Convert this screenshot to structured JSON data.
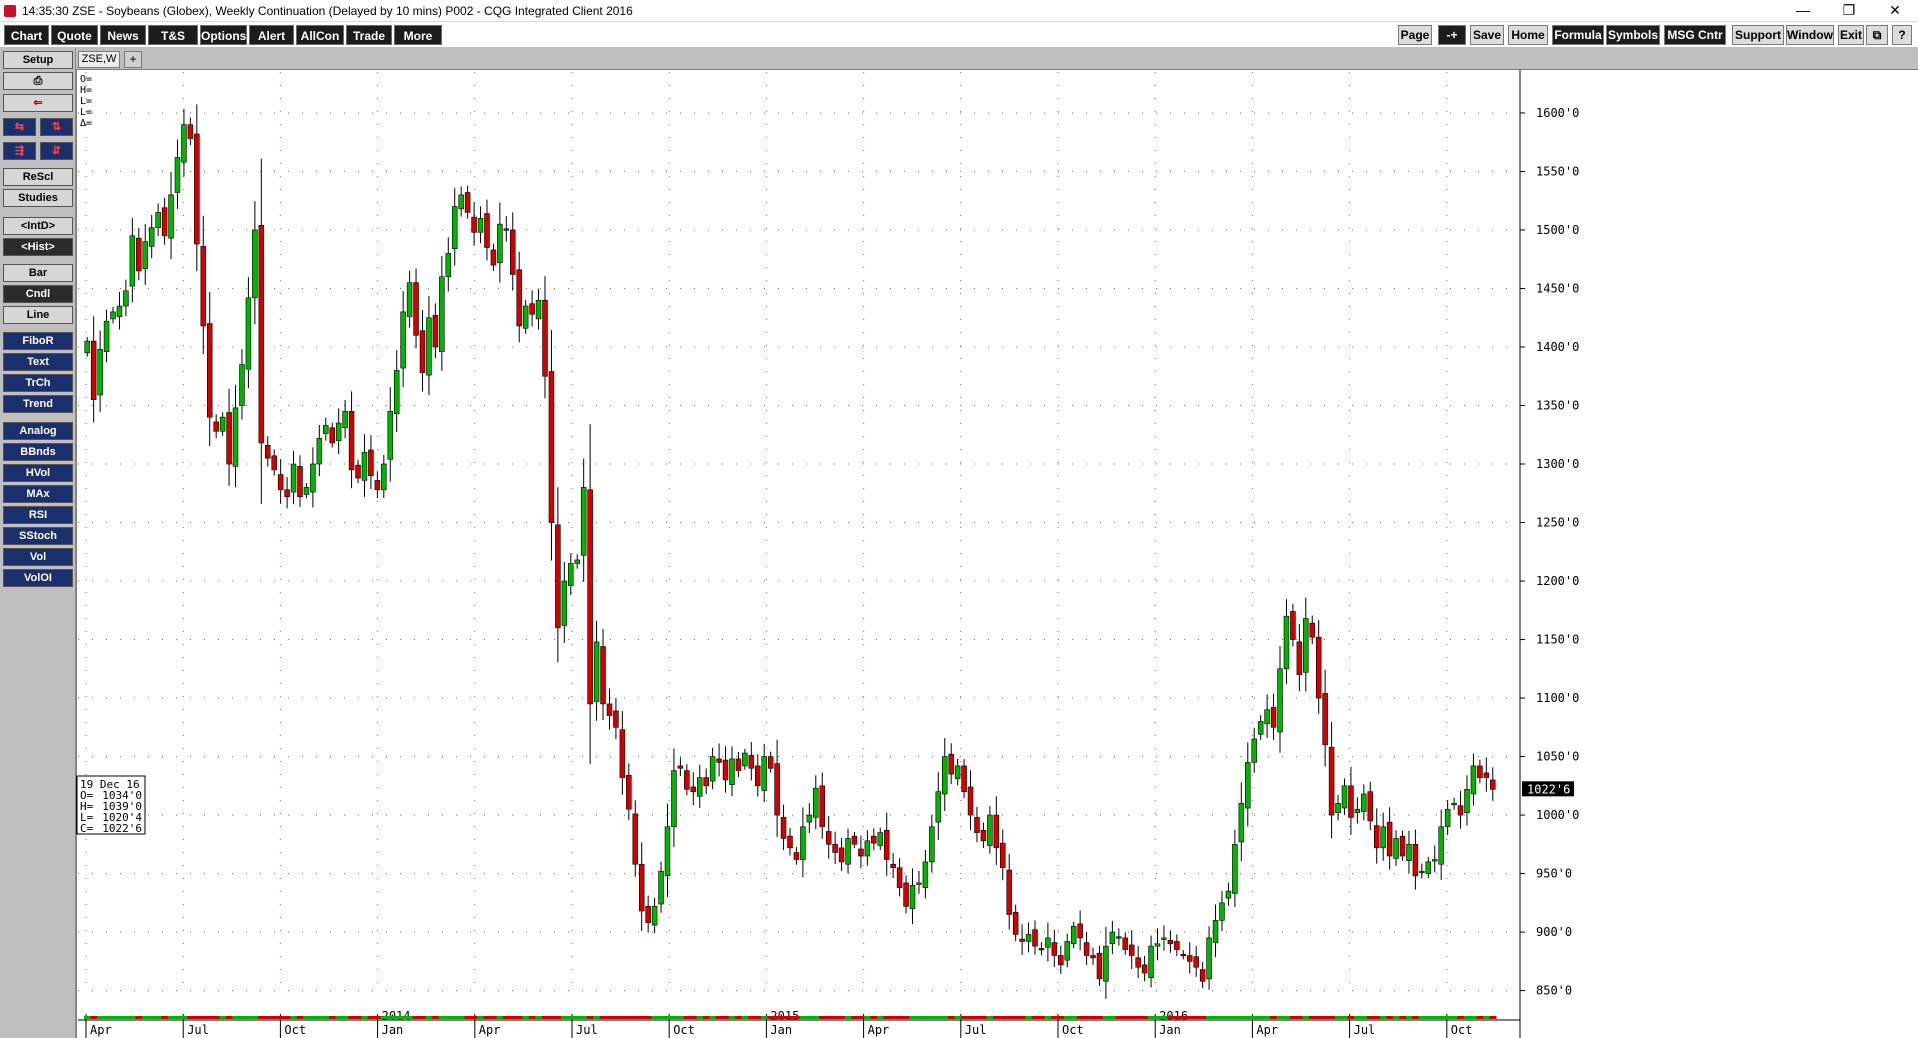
{
  "window": {
    "time": "14:35:30",
    "title": "ZSE - Soybeans (Globex), Weekly Continuation (Delayed by 10 mins)  P002 - CQG Integrated Client 2016",
    "minimize": "—",
    "restore": "❐",
    "close": "✕"
  },
  "menubar": {
    "left": [
      "Chart",
      "Quote",
      "News",
      "T&S",
      "Options",
      "Alert",
      "AllCon",
      "Trade",
      "More"
    ],
    "right": [
      "Page",
      "-+",
      "Save",
      "Home",
      "Formula",
      "Symbols",
      "MSG Cntr",
      "Support",
      "Window",
      "Exit",
      "",
      "?"
    ]
  },
  "sidebar": {
    "top": [
      "Setup"
    ],
    "nav_icons": [
      "print-icon",
      "exit-icon",
      "scroll-left-icon",
      "scroll-right-icon",
      "compress-icon",
      "expand-icon"
    ],
    "controls": [
      "ReScl",
      "Studies",
      "<IntD>",
      "<Hist>",
      "Bar",
      "Cndl",
      "Line"
    ],
    "tools": [
      "FiboR",
      "Text",
      "TrCh",
      "Trend"
    ],
    "studies": [
      "Analog",
      "BBnds",
      "HVol",
      "MAx",
      "RSI",
      "SStoch",
      "Vol",
      "VolOI"
    ]
  },
  "tab": {
    "label": "ZSE,W",
    "add": "+"
  },
  "cursor_box": {
    "lines": [
      "O=",
      "H=",
      "L=",
      "L=",
      "Δ="
    ]
  },
  "info_box": {
    "date": "19 Dec 16",
    "rows": [
      {
        "label": "O=",
        "value": "1034'0"
      },
      {
        "label": "H=",
        "value": "1039'0"
      },
      {
        "label": "L=",
        "value": "1020'4"
      },
      {
        "label": "C=",
        "value": "1022'6"
      }
    ]
  },
  "last_price_label": "1022'6",
  "colors": {
    "up": "#00b400",
    "down": "#d40000",
    "grid": "#6a6a6a",
    "axis": "#000000",
    "last_bg": "#000000"
  },
  "chart_data": {
    "type": "candlestick",
    "symbol": "ZSE",
    "period": "weekly",
    "ylim": [
      830,
      1635
    ],
    "y_ticks": [
      850,
      900,
      950,
      1000,
      1050,
      1100,
      1150,
      1200,
      1250,
      1300,
      1350,
      1400,
      1450,
      1500,
      1550,
      1600
    ],
    "y_tick_labels": [
      "850'0",
      "900'0",
      "950'0",
      "1000'0",
      "1050'0",
      "1100'0",
      "1150'0",
      "1200'0",
      "1250'0",
      "1300'0",
      "1350'0",
      "1400'0",
      "1450'0",
      "1500'0",
      "1550'0",
      "1600'0"
    ],
    "x_month_labels": [
      "Apr",
      "Jul",
      "Oct",
      "Jan",
      "Apr",
      "Jul",
      "Oct",
      "Jan",
      "Apr",
      "Jul",
      "Oct",
      "Jan",
      "Apr",
      "Jul",
      "Oct"
    ],
    "x_year_labels": [
      {
        "label": "2014",
        "month_index": 3
      },
      {
        "label": "2015",
        "month_index": 7
      },
      {
        "label": "2016",
        "month_index": 11
      }
    ],
    "closes": [
      1405,
      1355,
      1398,
      1422,
      1430,
      1435,
      1448,
      1495,
      1465,
      1490,
      1502,
      1515,
      1495,
      1530,
      1562,
      1590,
      1578,
      1488,
      1418,
      1340,
      1328,
      1340,
      1300,
      1348,
      1385,
      1442,
      1500,
      1318,
      1305,
      1295,
      1278,
      1272,
      1300,
      1272,
      1280,
      1300,
      1322,
      1333,
      1318,
      1335,
      1345,
      1295,
      1288,
      1310,
      1290,
      1278,
      1300,
      1345,
      1380,
      1430,
      1455,
      1410,
      1378,
      1425,
      1400,
      1460,
      1480,
      1520,
      1530,
      1515,
      1498,
      1510,
      1485,
      1470,
      1505,
      1500,
      1462,
      1418,
      1435,
      1428,
      1440,
      1375,
      1250,
      1160,
      1200,
      1215,
      1218,
      1280,
      1095,
      1148,
      1095,
      1085,
      1075,
      1032,
      1005,
      958,
      918,
      908,
      922,
      952,
      990,
      1038,
      1040,
      1022,
      1020,
      1032,
      1025,
      1050,
      1045,
      1030,
      1048,
      1038,
      1053,
      1040,
      1025,
      1050,
      1040,
      1000,
      980,
      972,
      962,
      990,
      1000,
      1023,
      990,
      975,
      968,
      960,
      980,
      975,
      965,
      978,
      976,
      985,
      962,
      955,
      938,
      922,
      940,
      942,
      960,
      990,
      1020,
      1050,
      1035,
      1042,
      1020,
      1000,
      985,
      978,
      1000,
      972,
      955,
      915,
      898,
      892,
      898,
      888,
      885,
      895,
      880,
      872,
      892,
      905,
      895,
      880,
      878,
      860,
      888,
      900,
      895,
      885,
      880,
      870,
      865,
      888,
      890,
      895,
      890,
      885,
      880,
      875,
      870,
      858,
      895,
      910,
      925,
      935,
      975,
      1010,
      1045,
      1065,
      1080,
      1090,
      1075,
      1125,
      1170,
      1150,
      1120,
      1168,
      1152,
      1100,
      1060,
      1000,
      1010,
      1025,
      998,
      1005,
      1018,
      995,
      972,
      990,
      965,
      980,
      965,
      975,
      948,
      952,
      960,
      962,
      990,
      1005,
      1010,
      1000,
      1022,
      1042,
      1032,
      1032,
      1022
    ]
  }
}
